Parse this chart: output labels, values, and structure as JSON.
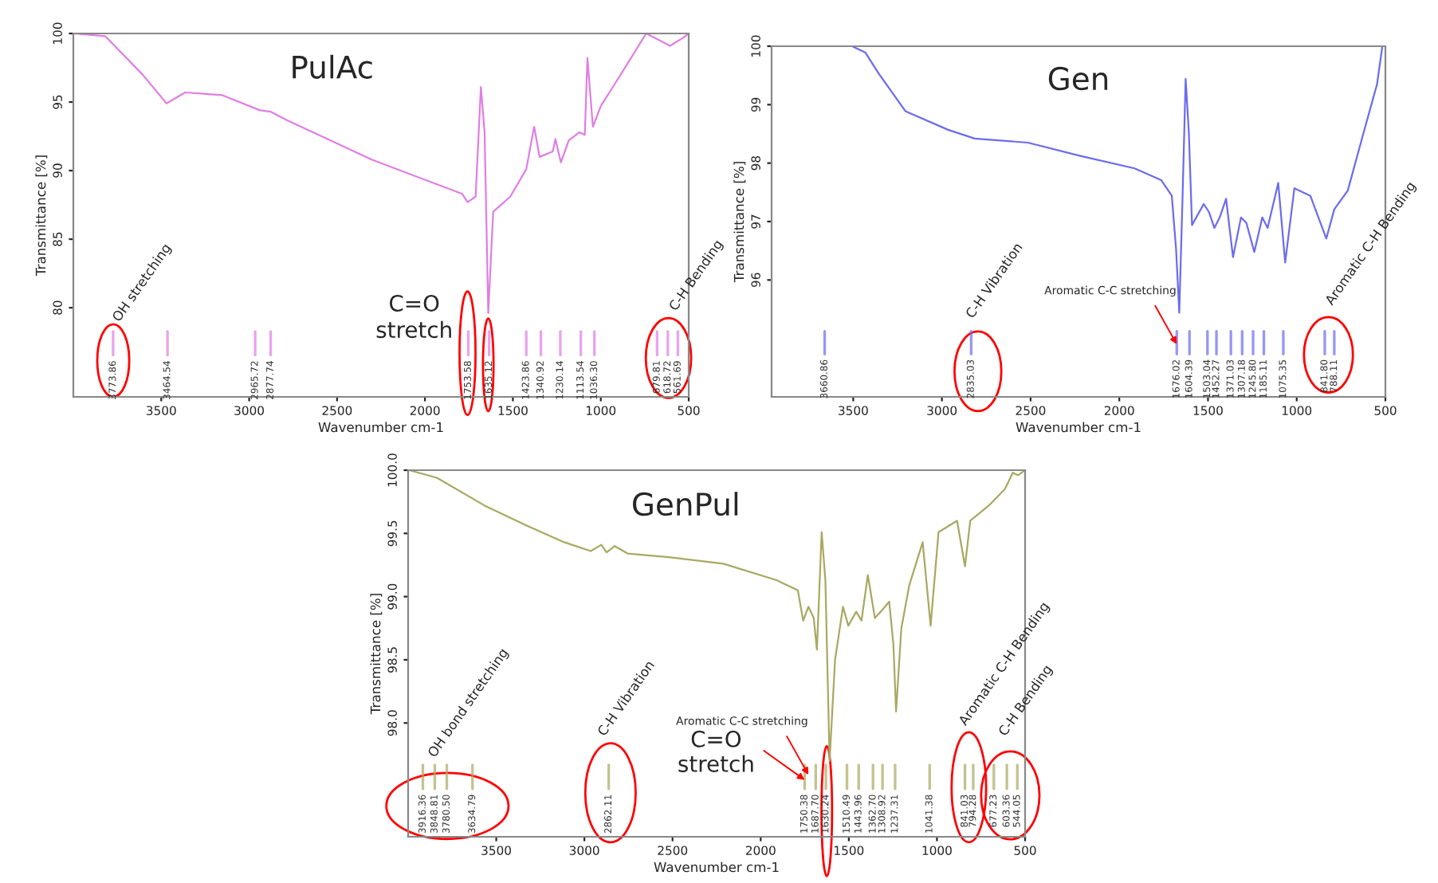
{
  "chart_data": [
    {
      "type": "line",
      "title": "PulAc",
      "xlabel": "Wavenumber cm-1",
      "ylabel": "Transmittance [%]",
      "x": [
        4000,
        3818,
        3606,
        3470,
        3364,
        3152,
        2939,
        2879,
        2788,
        2303,
        1788,
        1758,
        1712,
        1682,
        1661,
        1640,
        1612,
        1515,
        1424,
        1379,
        1348,
        1273,
        1258,
        1227,
        1182,
        1121,
        1091,
        1076,
        1045,
        1000,
        848,
        742,
        667,
        606,
        530,
        500
      ],
      "series": [
        {
          "color": "#e07ee4",
          "values": [
            100,
            99.8,
            97.0,
            94.9,
            95.7,
            95.5,
            94.4,
            94.3,
            93.7,
            90.8,
            88.3,
            87.7,
            88.1,
            96.1,
            92.8,
            79.6,
            87.0,
            88.1,
            90.1,
            93.2,
            91.0,
            91.4,
            92.3,
            90.6,
            92.2,
            92.8,
            92.6,
            98.2,
            93.2,
            94.7,
            97.8,
            100,
            99.5,
            99.1,
            99.7,
            100
          ]
        }
      ],
      "xlim": [
        4000,
        500
      ],
      "ylim": [
        73.5,
        100
      ],
      "xticks": [
        3500,
        3000,
        2500,
        2000,
        1500,
        1000,
        500
      ],
      "yticks": [
        80,
        85,
        90,
        95,
        100
      ],
      "ref_lines": [
        {
          "axis": "x",
          "value": 3773.86,
          "label": "3773.86"
        },
        {
          "axis": "x",
          "value": 3464.54,
          "label": "3464.54"
        },
        {
          "axis": "x",
          "value": 2965.72,
          "label": "2965.72"
        },
        {
          "axis": "x",
          "value": 2877.74,
          "label": "2877.74"
        },
        {
          "axis": "x",
          "value": 1753.58,
          "label": "1753.58"
        },
        {
          "axis": "x",
          "value": 1635.12,
          "label": "1635.12"
        },
        {
          "axis": "x",
          "value": 1423.86,
          "label": "1423.86"
        },
        {
          "axis": "x",
          "value": 1340.92,
          "label": "1340.92"
        },
        {
          "axis": "x",
          "value": 1230.14,
          "label": "1230.14"
        },
        {
          "axis": "x",
          "value": 1113.54,
          "label": "1113.54"
        },
        {
          "axis": "x",
          "value": 1036.3,
          "label": "1036.30"
        },
        {
          "axis": "x",
          "value": 679.81,
          "label": "679.81"
        },
        {
          "axis": "x",
          "value": 618.72,
          "label": "618.72"
        },
        {
          "axis": "x",
          "value": 561.69,
          "label": "561.69"
        }
      ],
      "annotations": [
        "OH stretching",
        "C=O\nstretch",
        "C-H Bending"
      ]
    },
    {
      "type": "line",
      "title": "Gen",
      "xlabel": "Wavenumber cm-1",
      "ylabel": "Transmittance [%]",
      "x": [
        3506,
        3431,
        3356,
        3206,
        2965,
        2815,
        2515,
        2215,
        1914,
        1764,
        1704,
        1680,
        1662,
        1644,
        1626,
        1608,
        1590,
        1524,
        1494,
        1464,
        1434,
        1398,
        1359,
        1314,
        1284,
        1239,
        1194,
        1164,
        1104,
        1065,
        1013,
        923,
        833,
        788,
        712,
        622,
        547,
        517
      ],
      "series": [
        {
          "color": "#6b6bf0",
          "values": [
            100,
            99.89,
            99.53,
            98.89,
            98.57,
            98.42,
            98.35,
            98.12,
            97.91,
            97.71,
            97.44,
            96.53,
            95.44,
            97.35,
            99.44,
            98.53,
            96.94,
            97.3,
            97.16,
            96.89,
            97.07,
            97.39,
            96.39,
            97.07,
            96.98,
            96.48,
            97.07,
            96.89,
            97.66,
            96.3,
            97.57,
            97.44,
            96.71,
            97.21,
            97.53,
            98.53,
            99.35,
            100
          ]
        }
      ],
      "xlim": [
        3960,
        500
      ],
      "ylim": [
        94.0,
        100
      ],
      "xticks": [
        3500,
        3000,
        2500,
        2000,
        1500,
        1000,
        500
      ],
      "yticks": [
        96,
        97,
        98,
        99,
        100
      ],
      "ref_lines": [
        {
          "axis": "x",
          "value": 3660.86,
          "label": "3660.86"
        },
        {
          "axis": "x",
          "value": 2835.03,
          "label": "2835.03"
        },
        {
          "axis": "x",
          "value": 1676.02,
          "label": "1676.02"
        },
        {
          "axis": "x",
          "value": 1604.39,
          "label": "1604.39"
        },
        {
          "axis": "x",
          "value": 1503.04,
          "label": "1503.04"
        },
        {
          "axis": "x",
          "value": 1452.27,
          "label": "1452.27"
        },
        {
          "axis": "x",
          "value": 1371.03,
          "label": "1371.03"
        },
        {
          "axis": "x",
          "value": 1307.18,
          "label": "1307.18"
        },
        {
          "axis": "x",
          "value": 1245.8,
          "label": "1245.80"
        },
        {
          "axis": "x",
          "value": 1185.11,
          "label": "1185.11"
        },
        {
          "axis": "x",
          "value": 1075.35,
          "label": "1075.35"
        },
        {
          "axis": "x",
          "value": 841.8,
          "label": "841.80"
        },
        {
          "axis": "x",
          "value": 788.11,
          "label": "788.11"
        }
      ],
      "annotations": [
        "C-H Vibration",
        {
          "text": "Aromatic C-C stretching",
          "x": 1676.02,
          "y": 94.9
        },
        "Aromatic C-H Bending"
      ]
    },
    {
      "type": "line",
      "title": "GenPul",
      "xlabel": "Wavenumber cm-1",
      "ylabel": "Transmittance [%]",
      "x": [
        3994,
        3837,
        3566,
        3325,
        3114,
        2964,
        2904,
        2874,
        2828,
        2753,
        2512,
        2211,
        1910,
        1789,
        1759,
        1729,
        1699,
        1681,
        1654,
        1633,
        1609,
        1578,
        1533,
        1503,
        1458,
        1428,
        1392,
        1352,
        1307,
        1271,
        1247,
        1232,
        1202,
        1157,
        1081,
        1036,
        991,
        886,
        841,
        811,
        706,
        615,
        570,
        540,
        500
      ],
      "series": [
        {
          "color": "#a9a862",
          "values": [
            100,
            99.94,
            99.72,
            99.56,
            99.43,
            99.36,
            99.41,
            99.35,
            99.4,
            99.34,
            99.31,
            99.26,
            99.13,
            99.05,
            98.81,
            98.92,
            98.83,
            98.58,
            99.51,
            99.13,
            97.7,
            98.5,
            98.92,
            98.77,
            98.88,
            98.81,
            99.17,
            98.83,
            98.9,
            98.96,
            98.62,
            98.09,
            98.75,
            99.09,
            99.43,
            98.77,
            99.51,
            99.6,
            99.24,
            99.6,
            99.72,
            99.85,
            99.98,
            99.96,
            100
          ]
        }
      ],
      "xlim": [
        4000,
        500
      ],
      "ylim": [
        97.1,
        100
      ],
      "xticks": [
        3500,
        3000,
        2500,
        2000,
        1500,
        1000,
        500
      ],
      "yticks": [
        {
          "value": 98,
          "label": "98.0"
        },
        {
          "value": 98.5,
          "label": "98.5"
        },
        {
          "value": 99,
          "label": "99.0"
        },
        {
          "value": 99.5,
          "label": "99.5"
        },
        {
          "value": 100,
          "label": "100.0"
        }
      ],
      "ref_lines": [
        {
          "axis": "x",
          "value": 3916.36,
          "label": "3916.36"
        },
        {
          "axis": "x",
          "value": 3848.81,
          "label": "3848.81"
        },
        {
          "axis": "x",
          "value": 3780.5,
          "label": "3780.50"
        },
        {
          "axis": "x",
          "value": 3634.79,
          "label": "3634.79"
        },
        {
          "axis": "x",
          "value": 2862.11,
          "label": "2862.11"
        },
        {
          "axis": "x",
          "value": 1750.38,
          "label": "1750.38"
        },
        {
          "axis": "x",
          "value": 1687.7,
          "label": "1687.70"
        },
        {
          "axis": "x",
          "value": 1630.24,
          "label": "1630.24"
        },
        {
          "axis": "x",
          "value": 1510.49,
          "label": "1510.49"
        },
        {
          "axis": "x",
          "value": 1443.96,
          "label": "1443.96"
        },
        {
          "axis": "x",
          "value": 1362.7,
          "label": "1362.70"
        },
        {
          "axis": "x",
          "value": 1308.92,
          "label": "1308.92"
        },
        {
          "axis": "x",
          "value": 1237.31,
          "label": "1237.31"
        },
        {
          "axis": "x",
          "value": 1041.38,
          "label": "1041.38"
        },
        {
          "axis": "x",
          "value": 841.03,
          "label": "841.03"
        },
        {
          "axis": "x",
          "value": 794.28,
          "label": "794.28"
        },
        {
          "axis": "x",
          "value": 677.23,
          "label": "677.23"
        },
        {
          "axis": "x",
          "value": 603.36,
          "label": "603.36"
        },
        {
          "axis": "x",
          "value": 544.05,
          "label": "544.05"
        }
      ],
      "annotations": [
        "OH bond stretching",
        "C-H Vibration",
        {
          "text": "Aromatic C-C stretching",
          "x": 1729,
          "y": 97.59
        },
        {
          "text": "C=O\nstretch",
          "x": 1750.38,
          "y": 97.55
        },
        "Aromatic C-H Bending",
        "C-H Bending"
      ]
    }
  ]
}
